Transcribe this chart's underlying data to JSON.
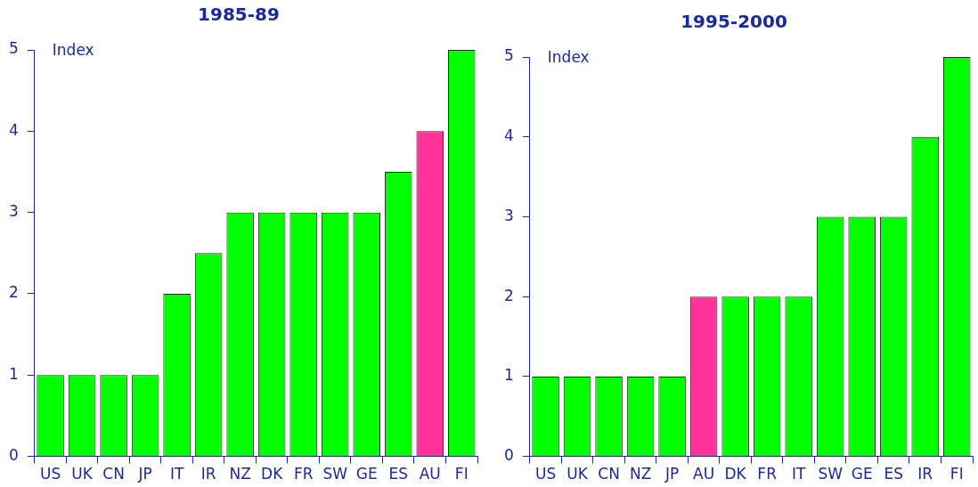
{
  "chart_data": [
    {
      "type": "bar",
      "title": "1985-89",
      "ylabel": "Index",
      "categories": [
        "US",
        "UK",
        "CN",
        "JP",
        "IT",
        "IR",
        "NZ",
        "DK",
        "FR",
        "SW",
        "GE",
        "ES",
        "AU",
        "FI"
      ],
      "values": [
        1,
        1,
        1,
        1,
        2,
        2.5,
        3,
        3,
        3,
        3,
        3,
        3.5,
        4,
        5
      ],
      "colors": [
        "#00ff00",
        "#00ff00",
        "#00ff00",
        "#00ff00",
        "#00ff00",
        "#00ff00",
        "#00ff00",
        "#00ff00",
        "#00ff00",
        "#00ff00",
        "#00ff00",
        "#00ff00",
        "#ff3399",
        "#00ff00"
      ],
      "ylim": [
        0,
        5
      ],
      "yticks": [
        0,
        1,
        2,
        3,
        4,
        5
      ],
      "grid": false,
      "legend": false
    },
    {
      "type": "bar",
      "title": "1995-2000",
      "ylabel": "Index",
      "categories": [
        "US",
        "UK",
        "CN",
        "NZ",
        "JP",
        "AU",
        "DK",
        "FR",
        "IT",
        "SW",
        "GE",
        "ES",
        "IR",
        "FI"
      ],
      "values": [
        1,
        1,
        1,
        1,
        1,
        2,
        2,
        2,
        2,
        3,
        3,
        3,
        4,
        5
      ],
      "colors": [
        "#00ff00",
        "#00ff00",
        "#00ff00",
        "#00ff00",
        "#00ff00",
        "#ff3399",
        "#00ff00",
        "#00ff00",
        "#00ff00",
        "#00ff00",
        "#00ff00",
        "#00ff00",
        "#00ff00",
        "#00ff00"
      ],
      "ylim": [
        0,
        5
      ],
      "yticks": [
        0,
        1,
        2,
        3,
        4,
        5
      ],
      "grid": false,
      "legend": false
    }
  ]
}
